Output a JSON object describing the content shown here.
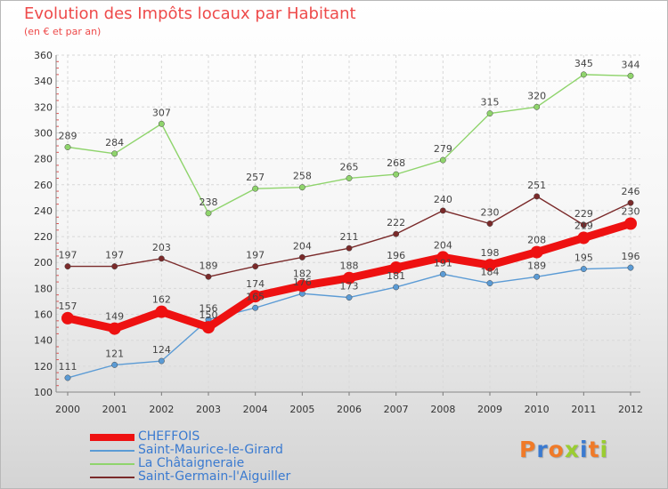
{
  "chart_data": {
    "type": "line",
    "title": "Evolution des Impôts locaux par Habitant",
    "subtitle": "(en € et par an)",
    "xlabel": "",
    "ylabel": "",
    "categories": [
      "2000",
      "2001",
      "2002",
      "2003",
      "2004",
      "2005",
      "2006",
      "2007",
      "2008",
      "2009",
      "2010",
      "2011",
      "2012"
    ],
    "ylim": [
      100,
      360
    ],
    "yticks": [
      100,
      120,
      140,
      160,
      180,
      200,
      220,
      240,
      260,
      280,
      300,
      320,
      340,
      360
    ],
    "grid": true,
    "legend_position": "bottom-left",
    "series": [
      {
        "name": "CHEFFOIS",
        "color": "#ee1111",
        "values": [
          157,
          149,
          162,
          150,
          174,
          182,
          188,
          196,
          204,
          198,
          208,
          219,
          230
        ]
      },
      {
        "name": "Saint-Maurice-le-Girard",
        "color": "#5b9bd5",
        "values": [
          111,
          121,
          124,
          156,
          165,
          176,
          173,
          181,
          191,
          184,
          189,
          195,
          196
        ]
      },
      {
        "name": "La Châtaigneraie",
        "color": "#8fd46c",
        "values": [
          289,
          284,
          307,
          238,
          257,
          258,
          265,
          268,
          279,
          315,
          320,
          345,
          344
        ]
      },
      {
        "name": "Saint-Germain-l'Aiguiller",
        "color": "#7a2a2a",
        "values": [
          197,
          197,
          203,
          189,
          197,
          204,
          211,
          222,
          240,
          230,
          251,
          229,
          246
        ]
      }
    ]
  },
  "brand": {
    "text": "Proxiti",
    "colors": [
      "#f07a28",
      "#3a7ad0",
      "#f07a28",
      "#9acd32",
      "#3a7ad0",
      "#f07a28",
      "#9acd32"
    ]
  }
}
